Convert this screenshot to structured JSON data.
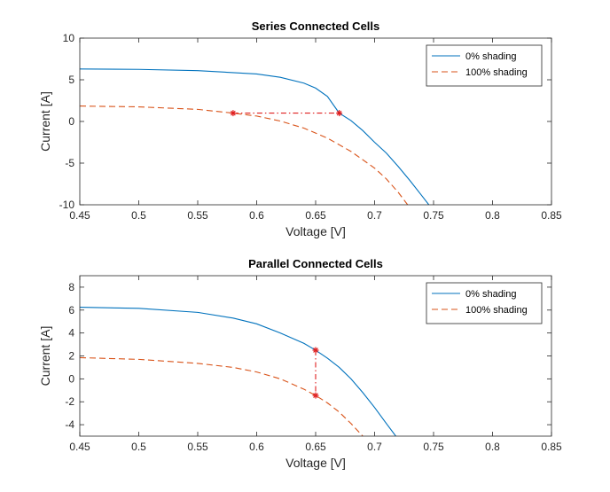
{
  "chart_data": [
    {
      "type": "line",
      "title": "Series Connected Cells",
      "xlabel": "Voltage [V]",
      "ylabel": "Current [A]",
      "xlim": [
        0.45,
        0.85
      ],
      "ylim": [
        -10,
        10
      ],
      "xticks": [
        0.45,
        0.5,
        0.55,
        0.6,
        0.65,
        0.7,
        0.75,
        0.8,
        0.85
      ],
      "yticks": [
        -10,
        -5,
        0,
        5,
        10
      ],
      "legend_position": "top-right",
      "series": [
        {
          "name": "0% shading",
          "style": "solid",
          "color": "#0072BD",
          "x": [
            0.45,
            0.5,
            0.55,
            0.6,
            0.62,
            0.64,
            0.65,
            0.66,
            0.67,
            0.68,
            0.69,
            0.7,
            0.71,
            0.72,
            0.73,
            0.74,
            0.746
          ],
          "y": [
            6.3,
            6.25,
            6.1,
            5.7,
            5.3,
            4.6,
            4.0,
            3.0,
            1.0,
            0.1,
            -1.1,
            -2.5,
            -3.8,
            -5.4,
            -7.1,
            -8.9,
            -10
          ]
        },
        {
          "name": "100% shading",
          "style": "dashed",
          "color": "#D95319",
          "x": [
            0.45,
            0.5,
            0.55,
            0.58,
            0.6,
            0.62,
            0.64,
            0.66,
            0.68,
            0.7,
            0.71,
            0.72,
            0.728
          ],
          "y": [
            1.85,
            1.75,
            1.45,
            1.0,
            0.65,
            0.05,
            -0.8,
            -2.0,
            -3.6,
            -5.6,
            -6.9,
            -8.5,
            -10
          ]
        },
        {
          "name": "",
          "style": "dashdot-markers",
          "color": "#E02020",
          "x": [
            0.58,
            0.67
          ],
          "y": [
            1.0,
            1.0
          ]
        }
      ]
    },
    {
      "type": "line",
      "title": "Parallel Connected Cells",
      "xlabel": "Voltage [V]",
      "ylabel": "Current [A]",
      "xlim": [
        0.45,
        0.85
      ],
      "ylim": [
        -5,
        9
      ],
      "xticks": [
        0.45,
        0.5,
        0.55,
        0.6,
        0.65,
        0.7,
        0.75,
        0.8,
        0.85
      ],
      "yticks": [
        -4,
        -2,
        0,
        2,
        4,
        6,
        8
      ],
      "legend_position": "top-right",
      "series": [
        {
          "name": "0% shading",
          "style": "solid",
          "color": "#0072BD",
          "x": [
            0.45,
            0.5,
            0.55,
            0.58,
            0.6,
            0.62,
            0.64,
            0.65,
            0.66,
            0.67,
            0.68,
            0.69,
            0.7,
            0.71,
            0.718
          ],
          "y": [
            6.25,
            6.15,
            5.8,
            5.3,
            4.8,
            4.0,
            3.1,
            2.5,
            1.8,
            1.0,
            0.0,
            -1.2,
            -2.5,
            -3.9,
            -5
          ]
        },
        {
          "name": "100% shading",
          "style": "dashed",
          "color": "#D95319",
          "x": [
            0.45,
            0.5,
            0.55,
            0.58,
            0.6,
            0.62,
            0.64,
            0.65,
            0.66,
            0.67,
            0.68,
            0.69
          ],
          "y": [
            1.85,
            1.7,
            1.35,
            1.0,
            0.6,
            0.0,
            -0.9,
            -1.45,
            -2.1,
            -2.9,
            -3.9,
            -5
          ]
        },
        {
          "name": "",
          "style": "dashdot-markers",
          "color": "#E02020",
          "x": [
            0.65,
            0.65
          ],
          "y": [
            2.5,
            -1.45
          ]
        }
      ]
    }
  ]
}
